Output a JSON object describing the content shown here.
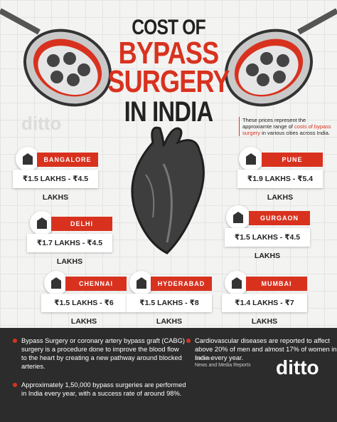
{
  "header": {
    "title_line_1": "COST OF",
    "title_line_2": "BYPASS",
    "title_line_3": "SURGERY",
    "title_line_4": "IN INDIA"
  },
  "note": {
    "before": "These prices represent the approxiamte range of",
    "highlight": "costs of bypass surgery",
    "after": "in various cities across India."
  },
  "cities": [
    {
      "name": "BANGALORE",
      "price": "₹1.5 LAKHS - ₹4.5 LAKHS"
    },
    {
      "name": "PUNE",
      "price": "₹1.9 LAKHS - ₹5.4 LAKHS"
    },
    {
      "name": "DELHI",
      "price": "₹1.7 LAKHS - ₹4.5 LAKHS"
    },
    {
      "name": "GURGAON",
      "price": "₹1.5 LAKHS - ₹4.5 LAKHS"
    },
    {
      "name": "CHENNAI",
      "price": "₹1.5 LAKHS - ₹6 LAKHS"
    },
    {
      "name": "HYDERABAD",
      "price": "₹1.5 LAKHS - ₹8 LAKHS"
    },
    {
      "name": "MUMBAI",
      "price": "₹1.4 LAKHS - ₹7 LAKHS"
    }
  ],
  "facts": [
    "Bypass Surgery or coronary artery bypass graft (CABG) surgery is a procedure done to improve the blood flow to the heart by creating a new pathway around blocked arteries.",
    "Approximately 1,50,000 bypass surgeries are performed in India every year, with a success rate of around 98%.",
    "Cardiovascular diseases are reported to affect above 20% of men and almost 17% of women in India every year."
  ],
  "source": {
    "label": "Source:",
    "text": "News and Media Reports"
  },
  "brand": "ditto"
}
